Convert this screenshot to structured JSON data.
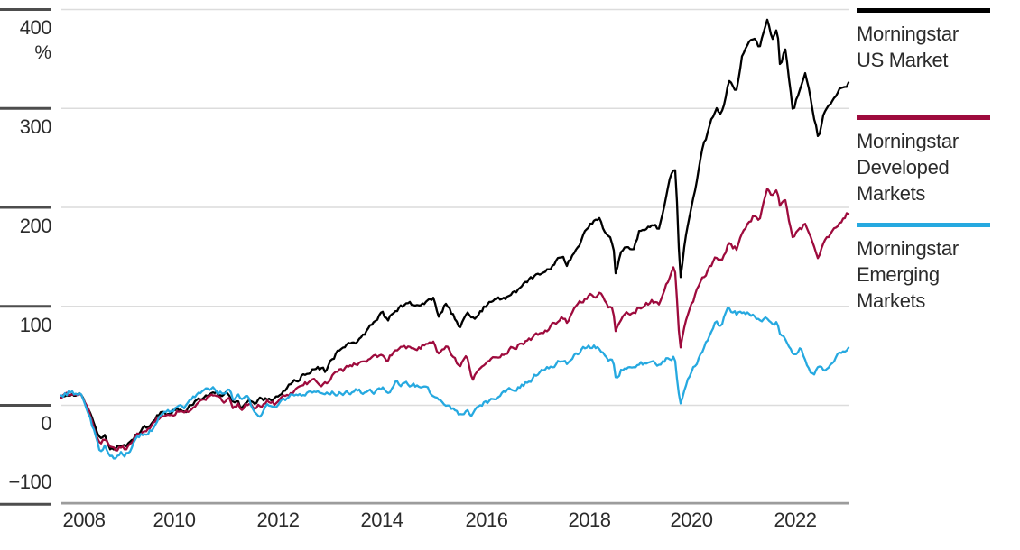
{
  "chart_data": {
    "type": "line",
    "title": "",
    "grid": true,
    "legend_position": "right",
    "y_axis": {
      "unit": "%",
      "tick_values": [
        400,
        300,
        200,
        100,
        0,
        -100
      ],
      "tick_labels": [
        "400",
        "300",
        "200",
        "100",
        "0",
        "−100"
      ],
      "range": [
        -100,
        410
      ]
    },
    "x_axis": {
      "tick_labels": [
        "2008",
        "2010",
        "2012",
        "2014",
        "2016",
        "2018",
        "2020",
        "2022"
      ],
      "range": [
        2008.25,
        2023.6
      ]
    },
    "series": [
      {
        "name": "Morningstar US Market",
        "color": "#000000",
        "points": [
          [
            2008.25,
            8
          ],
          [
            2008.4,
            12
          ],
          [
            2008.5,
            9
          ],
          [
            2008.63,
            13
          ],
          [
            2008.75,
            -1
          ],
          [
            2008.9,
            -22
          ],
          [
            2009.0,
            -35
          ],
          [
            2009.1,
            -30
          ],
          [
            2009.2,
            -42
          ],
          [
            2009.32,
            -45
          ],
          [
            2009.4,
            -39
          ],
          [
            2009.5,
            -42
          ],
          [
            2009.75,
            -27
          ],
          [
            2010.0,
            -20
          ],
          [
            2010.1,
            -12
          ],
          [
            2010.25,
            -7
          ],
          [
            2010.4,
            -9
          ],
          [
            2010.5,
            -3
          ],
          [
            2010.65,
            -7
          ],
          [
            2010.75,
            -2
          ],
          [
            2011.0,
            9
          ],
          [
            2011.15,
            13
          ],
          [
            2011.25,
            12
          ],
          [
            2011.4,
            8
          ],
          [
            2011.5,
            12
          ],
          [
            2011.6,
            1
          ],
          [
            2011.7,
            6
          ],
          [
            2011.75,
            -1
          ],
          [
            2011.85,
            4
          ],
          [
            2012.0,
            4
          ],
          [
            2012.25,
            8
          ],
          [
            2012.4,
            6
          ],
          [
            2012.5,
            10
          ],
          [
            2012.75,
            22
          ],
          [
            2013.0,
            32
          ],
          [
            2013.25,
            37
          ],
          [
            2013.4,
            34
          ],
          [
            2013.5,
            49
          ],
          [
            2013.75,
            58
          ],
          [
            2014.0,
            63
          ],
          [
            2014.25,
            79
          ],
          [
            2014.5,
            92
          ],
          [
            2014.6,
            85
          ],
          [
            2014.75,
            97
          ],
          [
            2015.0,
            101
          ],
          [
            2015.25,
            103
          ],
          [
            2015.5,
            106
          ],
          [
            2015.6,
            92
          ],
          [
            2015.75,
            103
          ],
          [
            2016.0,
            81
          ],
          [
            2016.15,
            93
          ],
          [
            2016.25,
            84
          ],
          [
            2016.5,
            100
          ],
          [
            2016.75,
            106
          ],
          [
            2017.0,
            112
          ],
          [
            2017.25,
            121
          ],
          [
            2017.5,
            130
          ],
          [
            2017.75,
            139
          ],
          [
            2018.0,
            150
          ],
          [
            2018.1,
            143
          ],
          [
            2018.25,
            156
          ],
          [
            2018.5,
            180
          ],
          [
            2018.75,
            190
          ],
          [
            2018.85,
            172
          ],
          [
            2019.0,
            162
          ],
          [
            2019.05,
            131
          ],
          [
            2019.15,
            155
          ],
          [
            2019.25,
            163
          ],
          [
            2019.4,
            158
          ],
          [
            2019.5,
            175
          ],
          [
            2019.75,
            181
          ],
          [
            2019.9,
            178
          ],
          [
            2020.0,
            202
          ],
          [
            2020.1,
            225
          ],
          [
            2020.2,
            243
          ],
          [
            2020.25,
            200
          ],
          [
            2020.3,
            124
          ],
          [
            2020.4,
            165
          ],
          [
            2020.5,
            196
          ],
          [
            2020.75,
            260
          ],
          [
            2021.0,
            300
          ],
          [
            2021.1,
            290
          ],
          [
            2021.25,
            325
          ],
          [
            2021.4,
            315
          ],
          [
            2021.5,
            352
          ],
          [
            2021.75,
            372
          ],
          [
            2021.85,
            362
          ],
          [
            2022.0,
            391
          ],
          [
            2022.1,
            370
          ],
          [
            2022.2,
            381
          ],
          [
            2022.25,
            342
          ],
          [
            2022.35,
            360
          ],
          [
            2022.5,
            297
          ],
          [
            2022.6,
            315
          ],
          [
            2022.75,
            334
          ],
          [
            2022.9,
            295
          ],
          [
            2023.0,
            270
          ],
          [
            2023.1,
            295
          ],
          [
            2023.25,
            302
          ],
          [
            2023.4,
            318
          ],
          [
            2023.6,
            327
          ]
        ]
      },
      {
        "name": "Morningstar Developed Markets",
        "color": "#9E0B3D",
        "points": [
          [
            2008.25,
            7
          ],
          [
            2008.4,
            10
          ],
          [
            2008.5,
            8
          ],
          [
            2008.63,
            11
          ],
          [
            2008.75,
            -3
          ],
          [
            2008.9,
            -25
          ],
          [
            2009.0,
            -38
          ],
          [
            2009.1,
            -33
          ],
          [
            2009.2,
            -44
          ],
          [
            2009.32,
            -47
          ],
          [
            2009.4,
            -41
          ],
          [
            2009.5,
            -44
          ],
          [
            2009.75,
            -30
          ],
          [
            2010.0,
            -23
          ],
          [
            2010.1,
            -15
          ],
          [
            2010.25,
            -11
          ],
          [
            2010.4,
            -13
          ],
          [
            2010.5,
            -6
          ],
          [
            2010.65,
            -10
          ],
          [
            2010.75,
            -6
          ],
          [
            2011.0,
            5
          ],
          [
            2011.15,
            9
          ],
          [
            2011.25,
            8
          ],
          [
            2011.4,
            4
          ],
          [
            2011.5,
            8
          ],
          [
            2011.6,
            -4
          ],
          [
            2011.7,
            1
          ],
          [
            2011.75,
            -7
          ],
          [
            2011.85,
            0
          ],
          [
            2012.0,
            -1
          ],
          [
            2012.25,
            3
          ],
          [
            2012.4,
            1
          ],
          [
            2012.5,
            4
          ],
          [
            2012.75,
            13
          ],
          [
            2013.0,
            21
          ],
          [
            2013.25,
            24
          ],
          [
            2013.4,
            22
          ],
          [
            2013.5,
            30
          ],
          [
            2013.75,
            36
          ],
          [
            2014.0,
            42
          ],
          [
            2014.25,
            46
          ],
          [
            2014.5,
            52
          ],
          [
            2014.6,
            47
          ],
          [
            2014.75,
            56
          ],
          [
            2015.0,
            59
          ],
          [
            2015.25,
            60
          ],
          [
            2015.5,
            63
          ],
          [
            2015.6,
            50
          ],
          [
            2015.75,
            58
          ],
          [
            2016.0,
            39
          ],
          [
            2016.15,
            47
          ],
          [
            2016.25,
            27
          ],
          [
            2016.5,
            43
          ],
          [
            2016.75,
            50
          ],
          [
            2017.0,
            57
          ],
          [
            2017.25,
            63
          ],
          [
            2017.5,
            70
          ],
          [
            2017.75,
            78
          ],
          [
            2018.0,
            88
          ],
          [
            2018.1,
            84
          ],
          [
            2018.25,
            98
          ],
          [
            2018.5,
            108
          ],
          [
            2018.75,
            114
          ],
          [
            2018.85,
            100
          ],
          [
            2019.0,
            96
          ],
          [
            2019.05,
            75
          ],
          [
            2019.15,
            88
          ],
          [
            2019.25,
            95
          ],
          [
            2019.4,
            92
          ],
          [
            2019.5,
            100
          ],
          [
            2019.75,
            105
          ],
          [
            2019.9,
            103
          ],
          [
            2020.0,
            118
          ],
          [
            2020.1,
            130
          ],
          [
            2020.2,
            140
          ],
          [
            2020.25,
            100
          ],
          [
            2020.3,
            57
          ],
          [
            2020.4,
            80
          ],
          [
            2020.5,
            100
          ],
          [
            2020.75,
            128
          ],
          [
            2021.0,
            150
          ],
          [
            2021.1,
            145
          ],
          [
            2021.25,
            163
          ],
          [
            2021.4,
            158
          ],
          [
            2021.5,
            175
          ],
          [
            2021.75,
            192
          ],
          [
            2021.85,
            186
          ],
          [
            2022.0,
            220
          ],
          [
            2022.1,
            210
          ],
          [
            2022.2,
            216
          ],
          [
            2022.25,
            200
          ],
          [
            2022.35,
            207
          ],
          [
            2022.5,
            168
          ],
          [
            2022.6,
            176
          ],
          [
            2022.75,
            183
          ],
          [
            2022.9,
            162
          ],
          [
            2023.0,
            150
          ],
          [
            2023.1,
            165
          ],
          [
            2023.25,
            172
          ],
          [
            2023.4,
            184
          ],
          [
            2023.6,
            196
          ]
        ]
      },
      {
        "name": "Morningstar Emerging Markets",
        "color": "#26A9E0",
        "points": [
          [
            2008.25,
            8
          ],
          [
            2008.4,
            13
          ],
          [
            2008.5,
            11
          ],
          [
            2008.63,
            15
          ],
          [
            2008.75,
            -1
          ],
          [
            2008.85,
            -20
          ],
          [
            2009.0,
            -45
          ],
          [
            2009.1,
            -40
          ],
          [
            2009.2,
            -53
          ],
          [
            2009.32,
            -56
          ],
          [
            2009.4,
            -48
          ],
          [
            2009.5,
            -50
          ],
          [
            2009.75,
            -32
          ],
          [
            2010.0,
            -25
          ],
          [
            2010.1,
            -14
          ],
          [
            2010.25,
            -5
          ],
          [
            2010.4,
            -8
          ],
          [
            2010.5,
            0
          ],
          [
            2010.65,
            -3
          ],
          [
            2010.75,
            3
          ],
          [
            2011.0,
            14
          ],
          [
            2011.15,
            18
          ],
          [
            2011.25,
            17
          ],
          [
            2011.4,
            12
          ],
          [
            2011.5,
            15
          ],
          [
            2011.6,
            5
          ],
          [
            2011.7,
            10
          ],
          [
            2011.75,
            3
          ],
          [
            2011.85,
            8
          ],
          [
            2012.0,
            -5
          ],
          [
            2012.1,
            -13
          ],
          [
            2012.2,
            -6
          ],
          [
            2012.25,
            0
          ],
          [
            2012.4,
            -3
          ],
          [
            2012.5,
            2
          ],
          [
            2012.75,
            9
          ],
          [
            2013.0,
            12
          ],
          [
            2013.25,
            12
          ],
          [
            2013.4,
            9
          ],
          [
            2013.5,
            13
          ],
          [
            2013.75,
            13
          ],
          [
            2014.0,
            14
          ],
          [
            2014.25,
            13
          ],
          [
            2014.5,
            16
          ],
          [
            2014.6,
            12
          ],
          [
            2014.75,
            22
          ],
          [
            2015.0,
            21
          ],
          [
            2015.25,
            18
          ],
          [
            2015.5,
            11
          ],
          [
            2015.6,
            3
          ],
          [
            2015.75,
            1
          ],
          [
            2016.0,
            -10
          ],
          [
            2016.15,
            -5
          ],
          [
            2016.25,
            -9
          ],
          [
            2016.5,
            2
          ],
          [
            2016.75,
            8
          ],
          [
            2017.0,
            15
          ],
          [
            2017.25,
            21
          ],
          [
            2017.5,
            31
          ],
          [
            2017.75,
            37
          ],
          [
            2018.0,
            45
          ],
          [
            2018.1,
            41
          ],
          [
            2018.25,
            52
          ],
          [
            2018.5,
            60
          ],
          [
            2018.75,
            59
          ],
          [
            2018.85,
            48
          ],
          [
            2019.0,
            43
          ],
          [
            2019.05,
            26
          ],
          [
            2019.15,
            36
          ],
          [
            2019.25,
            39
          ],
          [
            2019.4,
            36
          ],
          [
            2019.5,
            43
          ],
          [
            2019.75,
            42
          ],
          [
            2019.9,
            40
          ],
          [
            2020.0,
            46
          ],
          [
            2020.1,
            48
          ],
          [
            2020.2,
            50
          ],
          [
            2020.25,
            25
          ],
          [
            2020.3,
            2
          ],
          [
            2020.4,
            18
          ],
          [
            2020.5,
            32
          ],
          [
            2020.75,
            56
          ],
          [
            2021.0,
            85
          ],
          [
            2021.1,
            80
          ],
          [
            2021.25,
            100
          ],
          [
            2021.4,
            92
          ],
          [
            2021.5,
            94
          ],
          [
            2021.75,
            90
          ],
          [
            2021.85,
            85
          ],
          [
            2022.0,
            87
          ],
          [
            2022.1,
            82
          ],
          [
            2022.2,
            85
          ],
          [
            2022.25,
            73
          ],
          [
            2022.35,
            66
          ],
          [
            2022.5,
            49
          ],
          [
            2022.65,
            58
          ],
          [
            2022.75,
            45
          ],
          [
            2022.9,
            29
          ],
          [
            2023.0,
            42
          ],
          [
            2023.1,
            38
          ],
          [
            2023.25,
            41
          ],
          [
            2023.4,
            52
          ],
          [
            2023.6,
            57
          ]
        ]
      }
    ]
  },
  "legend": {
    "entries": [
      {
        "label": "Morningstar US Market",
        "color": "#000000"
      },
      {
        "label": "Morningstar Developed Markets",
        "color": "#9E0B3D"
      },
      {
        "label": "Morningstar Emerging Markets",
        "color": "#26A9E0"
      }
    ]
  },
  "style_colors": {
    "gridline": "#dcdcdc",
    "axis_line": "#9c9c9c",
    "tick_mark": "#4d4d4d"
  }
}
